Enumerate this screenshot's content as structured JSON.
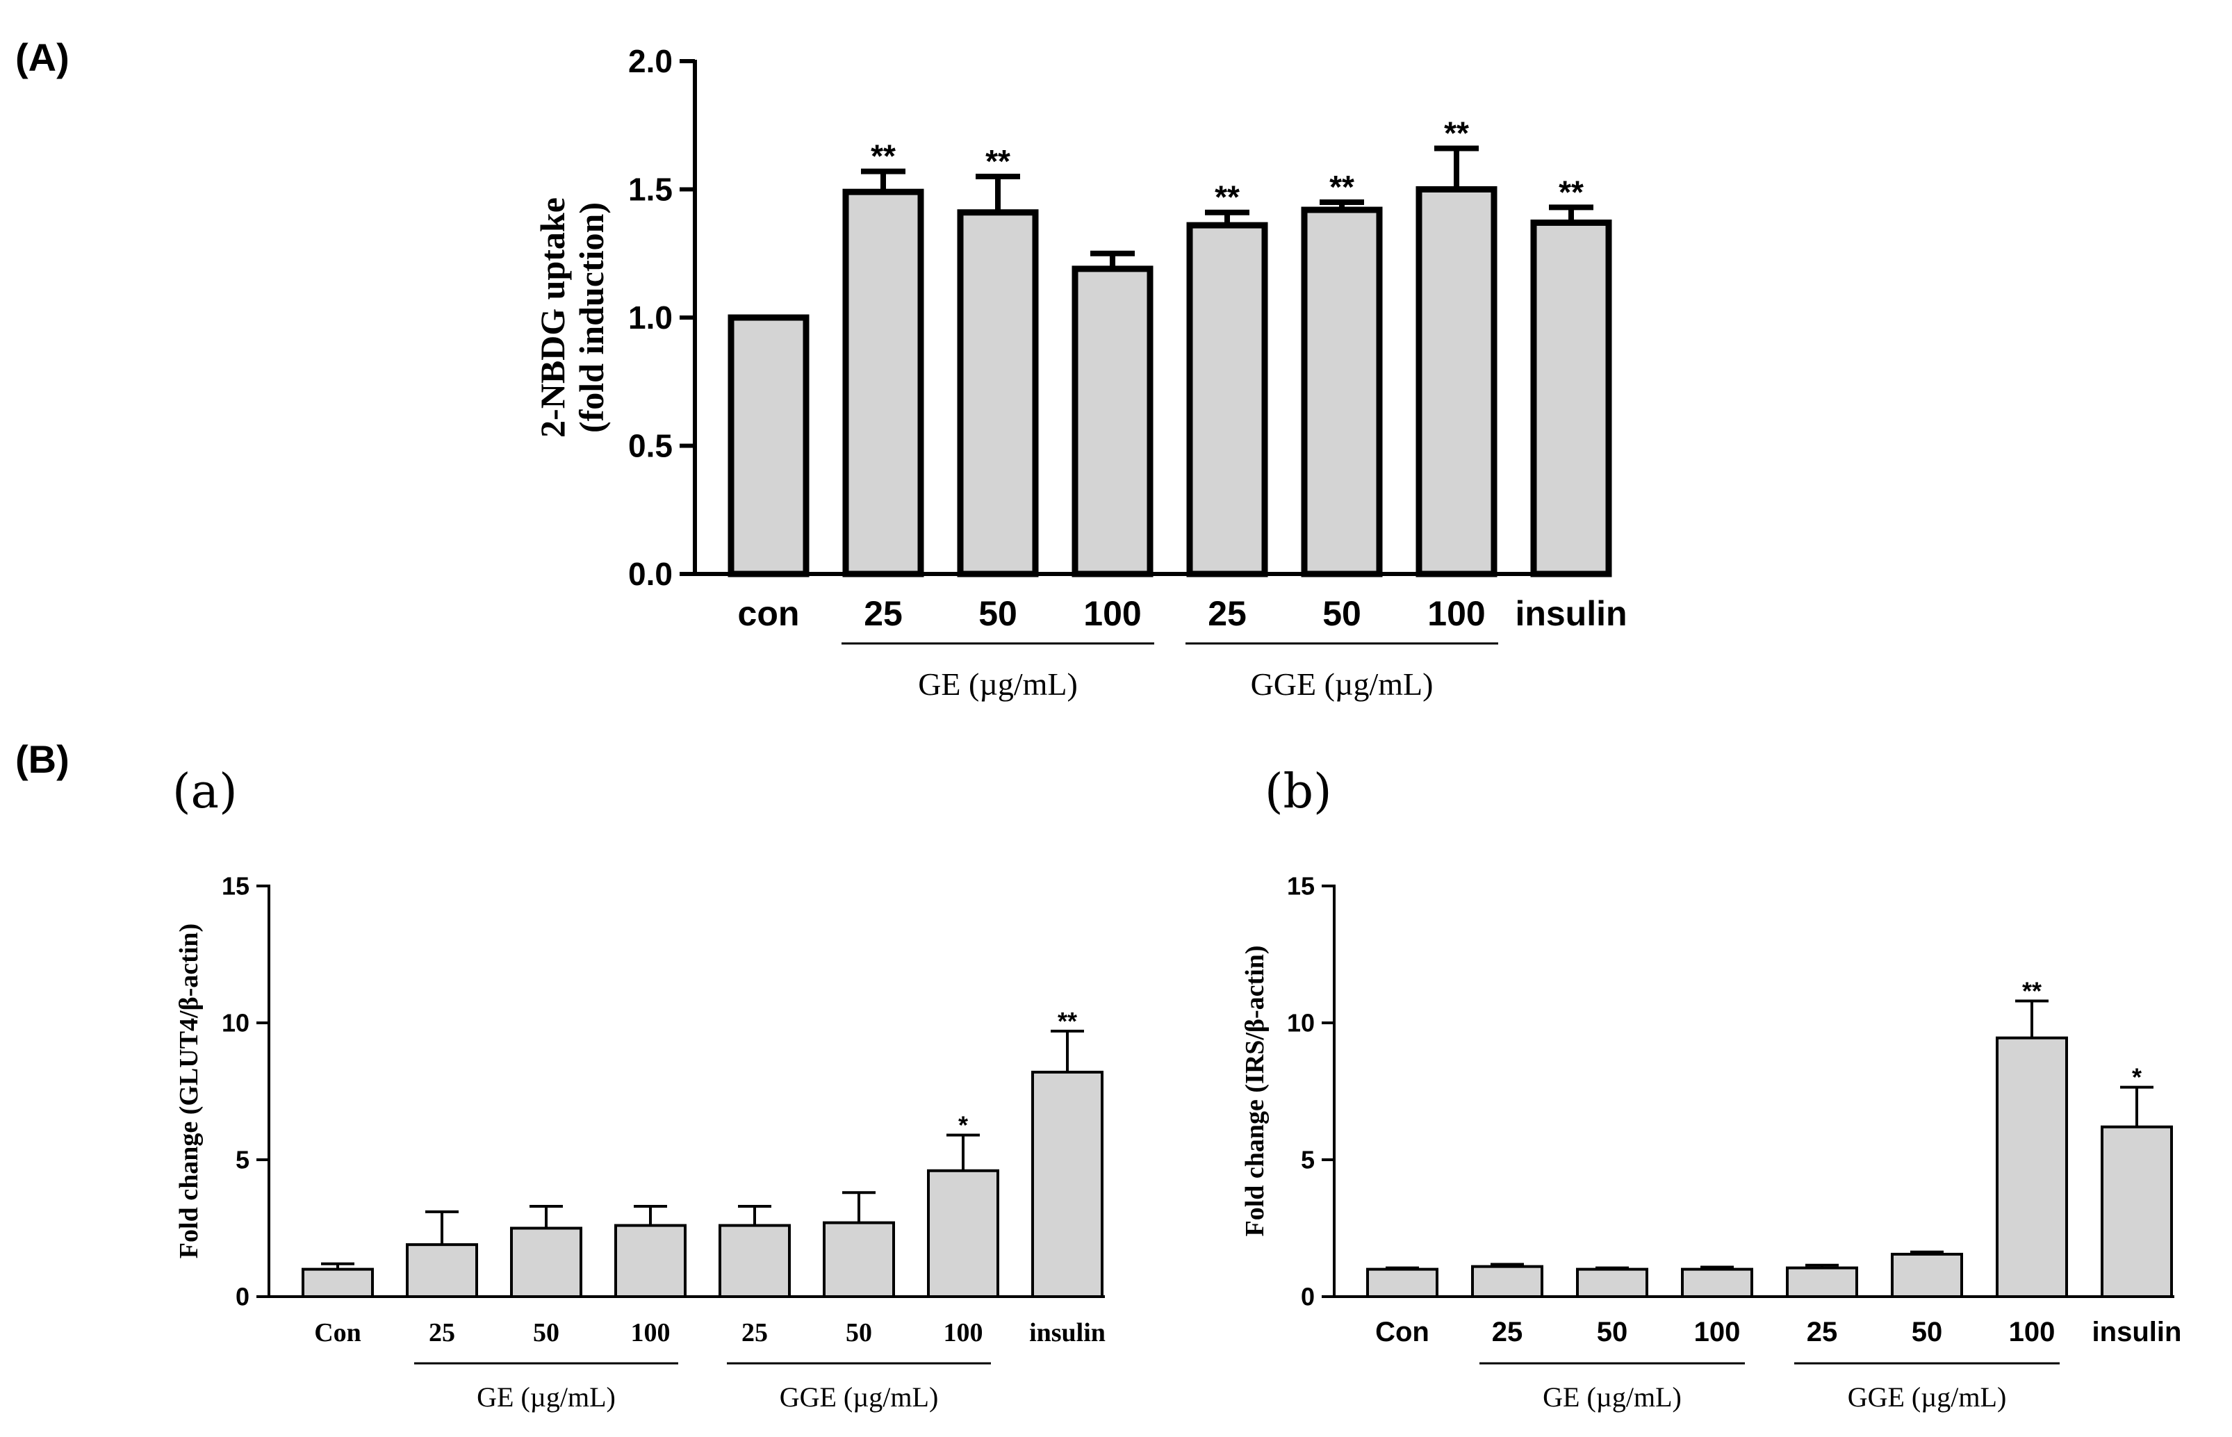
{
  "panel_labels": {
    "A": "(A)",
    "B": "(B)",
    "a": "(a)",
    "b": "(b)"
  },
  "colors": {
    "bar_fill": "#d4d4d4",
    "stroke": "#000000"
  },
  "chart_data": [
    {
      "id": "A",
      "type": "bar",
      "title": "",
      "ylabel": [
        "2-NBDG uptake",
        "(fold induction)"
      ],
      "ylim": [
        0,
        2.0
      ],
      "yticks": [
        "0.0",
        "0.5",
        "1.0",
        "1.5",
        "2.0"
      ],
      "ytick_values": [
        0,
        0.5,
        1.0,
        1.5,
        2.0
      ],
      "categories": [
        "con",
        "25",
        "50",
        "100",
        "25",
        "50",
        "100",
        "insulin"
      ],
      "values": [
        1.0,
        1.49,
        1.41,
        1.19,
        1.36,
        1.42,
        1.5,
        1.37
      ],
      "errors": [
        0.0,
        0.08,
        0.14,
        0.06,
        0.05,
        0.03,
        0.16,
        0.06
      ],
      "significance": [
        "",
        "**",
        "**",
        "",
        "**",
        "**",
        "**",
        "**"
      ],
      "groups": [
        {
          "label": "GE (µg/mL)",
          "from": 1,
          "to": 3
        },
        {
          "label": "GGE (µg/mL)",
          "from": 4,
          "to": 6
        }
      ]
    },
    {
      "id": "Ba",
      "type": "bar",
      "title": "",
      "ylabel": "Fold change (GLUT4/β-actin)",
      "ylim": [
        0,
        15
      ],
      "yticks": [
        "0",
        "5",
        "10",
        "15"
      ],
      "ytick_values": [
        0,
        5,
        10,
        15
      ],
      "categories": [
        "Con",
        "25",
        "50",
        "100",
        "25",
        "50",
        "100",
        "insulin"
      ],
      "values": [
        1.0,
        1.9,
        2.5,
        2.6,
        2.6,
        2.7,
        4.6,
        8.2
      ],
      "errors": [
        0.2,
        1.2,
        0.8,
        0.7,
        0.7,
        1.1,
        1.3,
        1.5
      ],
      "significance": [
        "",
        "",
        "",
        "",
        "",
        "",
        "*",
        "**"
      ],
      "groups": [
        {
          "label": "GE (µg/mL)",
          "from": 1,
          "to": 3
        },
        {
          "label": "GGE (µg/mL)",
          "from": 4,
          "to": 6
        }
      ]
    },
    {
      "id": "Bb",
      "type": "bar",
      "title": "",
      "ylabel": "Fold change (IRS/β-actin)",
      "ylim": [
        0,
        15
      ],
      "yticks": [
        "0",
        "5",
        "10",
        "15"
      ],
      "ytick_values": [
        0,
        5,
        10,
        15
      ],
      "categories": [
        "Con",
        "25",
        "50",
        "100",
        "25",
        "50",
        "100",
        "insulin"
      ],
      "values": [
        1.0,
        1.1,
        1.0,
        1.0,
        1.05,
        1.55,
        9.45,
        6.2
      ],
      "errors": [
        0.05,
        0.08,
        0.05,
        0.08,
        0.1,
        0.08,
        1.35,
        1.45
      ],
      "significance": [
        "",
        "",
        "",
        "",
        "",
        "",
        "**",
        "*"
      ],
      "groups": [
        {
          "label": "GE (µg/mL)",
          "from": 1,
          "to": 3
        },
        {
          "label": "GGE (µg/mL)",
          "from": 4,
          "to": 6
        }
      ]
    }
  ]
}
